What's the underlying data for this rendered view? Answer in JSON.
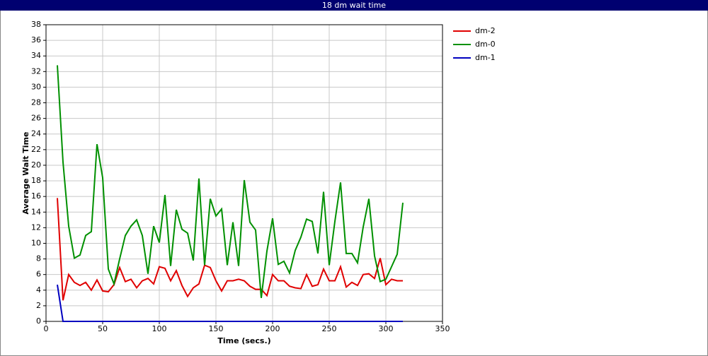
{
  "chart_data": {
    "type": "line",
    "title": "18 dm wait time",
    "x_label": "Time (secs.)",
    "y_label": "Average Wait Time",
    "x": [
      10,
      15,
      20,
      25,
      30,
      35,
      40,
      45,
      50,
      55,
      60,
      65,
      70,
      75,
      80,
      85,
      90,
      95,
      100,
      105,
      110,
      115,
      120,
      125,
      130,
      135,
      140,
      145,
      150,
      155,
      160,
      165,
      170,
      175,
      180,
      185,
      190,
      195,
      200,
      205,
      210,
      215,
      220,
      225,
      230,
      235,
      240,
      245,
      250,
      255,
      260,
      265,
      270,
      275,
      280,
      285,
      290,
      295,
      300,
      305,
      310,
      315
    ],
    "series": [
      {
        "name": "dm-2",
        "color": "#e00000",
        "values": [
          15.8,
          2.7,
          6,
          5,
          4.6,
          5,
          4,
          5.3,
          3.9,
          3.8,
          4.7,
          6.9,
          5.1,
          5.4,
          4.3,
          5.2,
          5.5,
          4.8,
          7,
          6.8,
          5.2,
          6.5,
          4.6,
          3.2,
          4.3,
          4.8,
          7.2,
          6.9,
          5.2,
          3.9,
          5.2,
          5.2,
          5.4,
          5.2,
          4.5,
          4.1,
          4.1,
          3.3,
          6,
          5.2,
          5.2,
          4.5,
          4.3,
          4.2,
          6,
          4.5,
          4.7,
          6.7,
          5.2,
          5.2,
          7,
          4.4,
          5,
          4.6,
          6,
          6.1,
          5.5,
          8.1,
          4.7,
          5.4,
          5.2,
          5.2
        ]
      },
      {
        "name": "dm-0",
        "color": "#009000",
        "values": [
          32.8,
          20.4,
          12.2,
          8.1,
          8.5,
          11,
          11.5,
          22.7,
          18.4,
          6.7,
          4.8,
          8,
          11,
          12.2,
          13,
          11,
          6.1,
          12.2,
          10.1,
          16.2,
          7.1,
          14.3,
          11.8,
          11.3,
          7.8,
          18.3,
          7.2,
          15.7,
          13.5,
          14.4,
          7.2,
          12.7,
          7.1,
          18.1,
          12.7,
          11.7,
          3,
          9,
          13.2,
          7.3,
          7.7,
          6.2,
          9.1,
          10.8,
          13.1,
          12.8,
          8.7,
          16.6,
          7.2,
          12.8,
          17.8,
          8.7,
          8.7,
          7.5,
          12.1,
          15.7,
          8.4,
          5.1,
          5.4,
          7,
          8.6,
          15.2
        ]
      },
      {
        "name": "dm-1",
        "color": "#0000c0",
        "values": [
          4.7,
          0,
          0,
          0,
          0,
          0,
          0,
          0,
          0,
          0,
          0,
          0,
          0,
          0,
          0,
          0,
          0,
          0,
          0,
          0,
          0,
          0,
          0,
          0,
          0,
          0,
          0,
          0,
          0,
          0,
          0,
          0,
          0,
          0,
          0,
          0,
          0,
          0,
          0,
          0,
          0,
          0,
          0,
          0,
          0,
          0,
          0,
          0,
          0,
          0,
          0,
          0,
          0,
          0,
          0,
          0,
          0,
          0,
          0,
          0,
          0,
          0
        ]
      }
    ],
    "xlim": [
      0,
      350
    ],
    "xticks": [
      0,
      50,
      100,
      150,
      200,
      250,
      300,
      350
    ],
    "ylim": [
      0,
      38
    ],
    "yticks": [
      0,
      2,
      4,
      6,
      8,
      10,
      12,
      14,
      16,
      18,
      20,
      22,
      24,
      26,
      28,
      30,
      32,
      34,
      36,
      38
    ],
    "grid": true,
    "legend": "right"
  }
}
